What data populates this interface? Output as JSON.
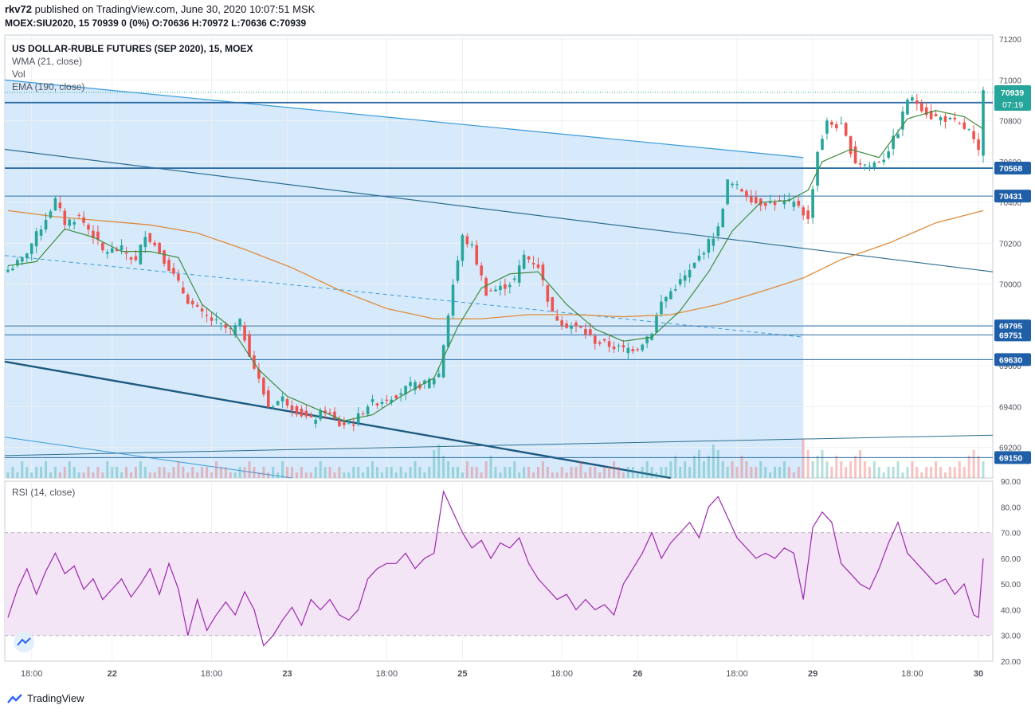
{
  "header": {
    "user": "rkv72",
    "published": "published on TradingView.com, June 30, 2020 10:07:51 MSK",
    "symbol_line": "MOEX:SIU2020, 15  70939 0 (0%) O:70636 H:70972 L:70636 C:70939"
  },
  "legend": {
    "title": "US DOLLAR-RUBLE FUTURES (SEP 2020), 15, MOEX",
    "wma": "WMA (21, close)",
    "vol": "Vol",
    "ema": "EMA (190, close)",
    "rsi": "RSI (14, close)"
  },
  "footer": {
    "brand": "TradingView"
  },
  "colors": {
    "up": "#26a69a",
    "down": "#ef5350",
    "wma": "#3d8b3d",
    "ema": "#e08a3a",
    "rsi": "#9c27b0",
    "channel_fill": "#cfe6fa",
    "hline": "#2e6da4",
    "price_label_bg": "#1f5fa8",
    "last_price_bg": "#26a69a",
    "rsi_band": "#f3e5f5"
  },
  "chart_data": [
    {
      "type": "candlestick",
      "title": "US DOLLAR-RUBLE FUTURES (SEP 2020), 15, MOEX",
      "timeframe": "15",
      "ylim": [
        69050,
        71220
      ],
      "y_ticks": [
        71200,
        71000,
        70800,
        70600,
        70400,
        70200,
        70000,
        69800,
        69600,
        69400,
        69200
      ],
      "x_ticks": [
        "18:00",
        "22",
        "18:00",
        "23",
        "18:00",
        "25",
        "18:00",
        "26",
        "18:00",
        "29",
        "18:00",
        "30"
      ],
      "horizontal_levels": [
        70889,
        70568,
        70431,
        69795,
        69751,
        69630,
        69150
      ],
      "last_price": 70939,
      "countdown": "07:19",
      "price_path": [
        [
          0,
          70070
        ],
        [
          3,
          70120
        ],
        [
          7,
          70280
        ],
        [
          10,
          70410
        ],
        [
          12,
          70300
        ],
        [
          15,
          70330
        ],
        [
          18,
          70240
        ],
        [
          20,
          70160
        ],
        [
          24,
          70170
        ],
        [
          27,
          70110
        ],
        [
          29,
          70250
        ],
        [
          32,
          70160
        ],
        [
          35,
          70040
        ],
        [
          38,
          69920
        ],
        [
          41,
          69850
        ],
        [
          44,
          69810
        ],
        [
          47,
          69770
        ],
        [
          49,
          69810
        ],
        [
          52,
          69590
        ],
        [
          55,
          69400
        ],
        [
          58,
          69440
        ],
        [
          61,
          69380
        ],
        [
          64,
          69330
        ],
        [
          67,
          69380
        ],
        [
          70,
          69310
        ],
        [
          73,
          69320
        ],
        [
          76,
          69410
        ],
        [
          79,
          69430
        ],
        [
          82,
          69460
        ],
        [
          85,
          69500
        ],
        [
          88,
          69510
        ],
        [
          91,
          69560
        ],
        [
          94,
          70000
        ],
        [
          96,
          70230
        ],
        [
          98,
          70180
        ],
        [
          101,
          69960
        ],
        [
          104,
          69980
        ],
        [
          107,
          70020
        ],
        [
          109,
          70140
        ],
        [
          112,
          70090
        ],
        [
          115,
          69850
        ],
        [
          118,
          69800
        ],
        [
          121,
          69780
        ],
        [
          124,
          69720
        ],
        [
          127,
          69700
        ],
        [
          130,
          69680
        ],
        [
          133,
          69690
        ],
        [
          136,
          69770
        ],
        [
          138,
          69910
        ],
        [
          141,
          69990
        ],
        [
          144,
          70060
        ],
        [
          147,
          70170
        ],
        [
          150,
          70270
        ],
        [
          152,
          70500
        ],
        [
          155,
          70460
        ],
        [
          158,
          70400
        ],
        [
          161,
          70400
        ],
        [
          164,
          70400
        ],
        [
          167,
          70390
        ],
        [
          169,
          70310
        ],
        [
          171,
          70650
        ],
        [
          173,
          70790
        ],
        [
          176,
          70770
        ],
        [
          179,
          70600
        ],
        [
          182,
          70580
        ],
        [
          185,
          70620
        ],
        [
          188,
          70750
        ],
        [
          190,
          70910
        ],
        [
          192,
          70890
        ],
        [
          195,
          70820
        ],
        [
          198,
          70810
        ],
        [
          200,
          70790
        ],
        [
          203,
          70750
        ],
        [
          205,
          70640
        ],
        [
          206,
          70939
        ]
      ],
      "wma_21_path": [
        [
          0,
          70090
        ],
        [
          6,
          70110
        ],
        [
          12,
          70270
        ],
        [
          18,
          70230
        ],
        [
          24,
          70160
        ],
        [
          30,
          70160
        ],
        [
          36,
          70130
        ],
        [
          41,
          69900
        ],
        [
          47,
          69790
        ],
        [
          53,
          69580
        ],
        [
          59,
          69450
        ],
        [
          65,
          69390
        ],
        [
          71,
          69330
        ],
        [
          77,
          69360
        ],
        [
          83,
          69450
        ],
        [
          90,
          69540
        ],
        [
          95,
          69790
        ],
        [
          100,
          69980
        ],
        [
          106,
          70050
        ],
        [
          112,
          70060
        ],
        [
          118,
          69900
        ],
        [
          124,
          69780
        ],
        [
          130,
          69720
        ],
        [
          136,
          69740
        ],
        [
          142,
          69870
        ],
        [
          148,
          70060
        ],
        [
          153,
          70260
        ],
        [
          159,
          70400
        ],
        [
          165,
          70410
        ],
        [
          169,
          70460
        ],
        [
          172,
          70600
        ],
        [
          178,
          70660
        ],
        [
          184,
          70620
        ],
        [
          190,
          70810
        ],
        [
          196,
          70850
        ],
        [
          202,
          70820
        ],
        [
          206,
          70760
        ]
      ],
      "ema_190_path": [
        [
          0,
          70360
        ],
        [
          10,
          70330
        ],
        [
          20,
          70310
        ],
        [
          30,
          70290
        ],
        [
          40,
          70250
        ],
        [
          50,
          70170
        ],
        [
          60,
          70080
        ],
        [
          70,
          69970
        ],
        [
          80,
          69880
        ],
        [
          90,
          69830
        ],
        [
          100,
          69830
        ],
        [
          110,
          69850
        ],
        [
          120,
          69850
        ],
        [
          130,
          69840
        ],
        [
          140,
          69850
        ],
        [
          150,
          69900
        ],
        [
          160,
          69970
        ],
        [
          168,
          70030
        ],
        [
          176,
          70120
        ],
        [
          186,
          70200
        ],
        [
          196,
          70300
        ],
        [
          206,
          70360
        ]
      ],
      "volume_bars": [
        1,
        2,
        1,
        3,
        2,
        1,
        2,
        2,
        3,
        1,
        2,
        1,
        2,
        3,
        2,
        1,
        1,
        2,
        1,
        2,
        1,
        3,
        2,
        2,
        1,
        2,
        1,
        2,
        3,
        2,
        1,
        1,
        2,
        2,
        1,
        2,
        3,
        2,
        1,
        2,
        1,
        2,
        2,
        1,
        3,
        2,
        2,
        1,
        1,
        2,
        2,
        3,
        2,
        1,
        2,
        1,
        2,
        1,
        3,
        2,
        2,
        1,
        2,
        1,
        1,
        2,
        3,
        2,
        2,
        1,
        2,
        1,
        1,
        2,
        2,
        1,
        2,
        3,
        2,
        1,
        2,
        2,
        1,
        2,
        1,
        2,
        3,
        2,
        1,
        2,
        5,
        6,
        4,
        3,
        2,
        2,
        1,
        3,
        2,
        2,
        1,
        3,
        4,
        2,
        1,
        2,
        2,
        3,
        1,
        2,
        2,
        1,
        2,
        3,
        2,
        1,
        1,
        2,
        1,
        2,
        2,
        3,
        1,
        2,
        2,
        1,
        2,
        2,
        3,
        2,
        1,
        2,
        2,
        1,
        2,
        3,
        2,
        1,
        2,
        2,
        3,
        4,
        2,
        3,
        2,
        4,
        5,
        3,
        4,
        6,
        5,
        3,
        2,
        3,
        2,
        4,
        3,
        2,
        2,
        3,
        2,
        1,
        2,
        2,
        3,
        2,
        1,
        2,
        7,
        5,
        3,
        4,
        5,
        3,
        2,
        4,
        3,
        2,
        3,
        4,
        5,
        3,
        2,
        3,
        2,
        1,
        2,
        2,
        3,
        1,
        2,
        3,
        2,
        1,
        2,
        2,
        3,
        2,
        1,
        2,
        2,
        3,
        2,
        4,
        5,
        4,
        3
      ]
    },
    {
      "type": "line",
      "title": "RSI (14, close)",
      "ylim": [
        20,
        90
      ],
      "y_ticks": [
        90,
        80,
        70,
        60,
        50,
        40,
        30,
        20
      ],
      "bands": [
        30,
        70
      ],
      "rsi_path": [
        [
          0,
          37
        ],
        [
          2,
          48
        ],
        [
          4,
          56
        ],
        [
          6,
          46
        ],
        [
          8,
          55
        ],
        [
          10,
          62
        ],
        [
          12,
          54
        ],
        [
          14,
          57
        ],
        [
          16,
          48
        ],
        [
          18,
          52
        ],
        [
          20,
          44
        ],
        [
          22,
          48
        ],
        [
          24,
          52
        ],
        [
          26,
          45
        ],
        [
          28,
          50
        ],
        [
          30,
          56
        ],
        [
          32,
          46
        ],
        [
          34,
          58
        ],
        [
          36,
          48
        ],
        [
          38,
          30
        ],
        [
          40,
          44
        ],
        [
          42,
          32
        ],
        [
          44,
          38
        ],
        [
          46,
          43
        ],
        [
          48,
          38
        ],
        [
          50,
          47
        ],
        [
          52,
          40
        ],
        [
          54,
          26
        ],
        [
          56,
          30
        ],
        [
          58,
          36
        ],
        [
          60,
          41
        ],
        [
          62,
          34
        ],
        [
          64,
          44
        ],
        [
          66,
          40
        ],
        [
          68,
          44
        ],
        [
          70,
          38
        ],
        [
          72,
          36
        ],
        [
          74,
          40
        ],
        [
          76,
          52
        ],
        [
          78,
          56
        ],
        [
          80,
          58
        ],
        [
          82,
          58
        ],
        [
          84,
          62
        ],
        [
          86,
          56
        ],
        [
          88,
          60
        ],
        [
          90,
          62
        ],
        [
          92,
          86
        ],
        [
          94,
          78
        ],
        [
          96,
          70
        ],
        [
          98,
          64
        ],
        [
          100,
          67
        ],
        [
          102,
          60
        ],
        [
          104,
          66
        ],
        [
          106,
          64
        ],
        [
          108,
          68
        ],
        [
          110,
          58
        ],
        [
          112,
          52
        ],
        [
          114,
          48
        ],
        [
          116,
          44
        ],
        [
          118,
          46
        ],
        [
          120,
          40
        ],
        [
          122,
          44
        ],
        [
          124,
          40
        ],
        [
          126,
          42
        ],
        [
          128,
          38
        ],
        [
          130,
          50
        ],
        [
          132,
          56
        ],
        [
          134,
          62
        ],
        [
          136,
          70
        ],
        [
          138,
          60
        ],
        [
          140,
          66
        ],
        [
          142,
          70
        ],
        [
          144,
          74
        ],
        [
          146,
          68
        ],
        [
          148,
          80
        ],
        [
          150,
          84
        ],
        [
          152,
          76
        ],
        [
          154,
          68
        ],
        [
          156,
          64
        ],
        [
          158,
          60
        ],
        [
          160,
          62
        ],
        [
          162,
          60
        ],
        [
          164,
          64
        ],
        [
          166,
          62
        ],
        [
          168,
          44
        ],
        [
          170,
          72
        ],
        [
          172,
          78
        ],
        [
          174,
          74
        ],
        [
          176,
          58
        ],
        [
          178,
          54
        ],
        [
          180,
          50
        ],
        [
          182,
          48
        ],
        [
          184,
          56
        ],
        [
          186,
          66
        ],
        [
          188,
          74
        ],
        [
          190,
          62
        ],
        [
          192,
          58
        ],
        [
          194,
          54
        ],
        [
          196,
          50
        ],
        [
          198,
          52
        ],
        [
          200,
          46
        ],
        [
          202,
          50
        ],
        [
          204,
          38
        ],
        [
          205,
          37
        ],
        [
          206,
          60
        ]
      ]
    }
  ]
}
